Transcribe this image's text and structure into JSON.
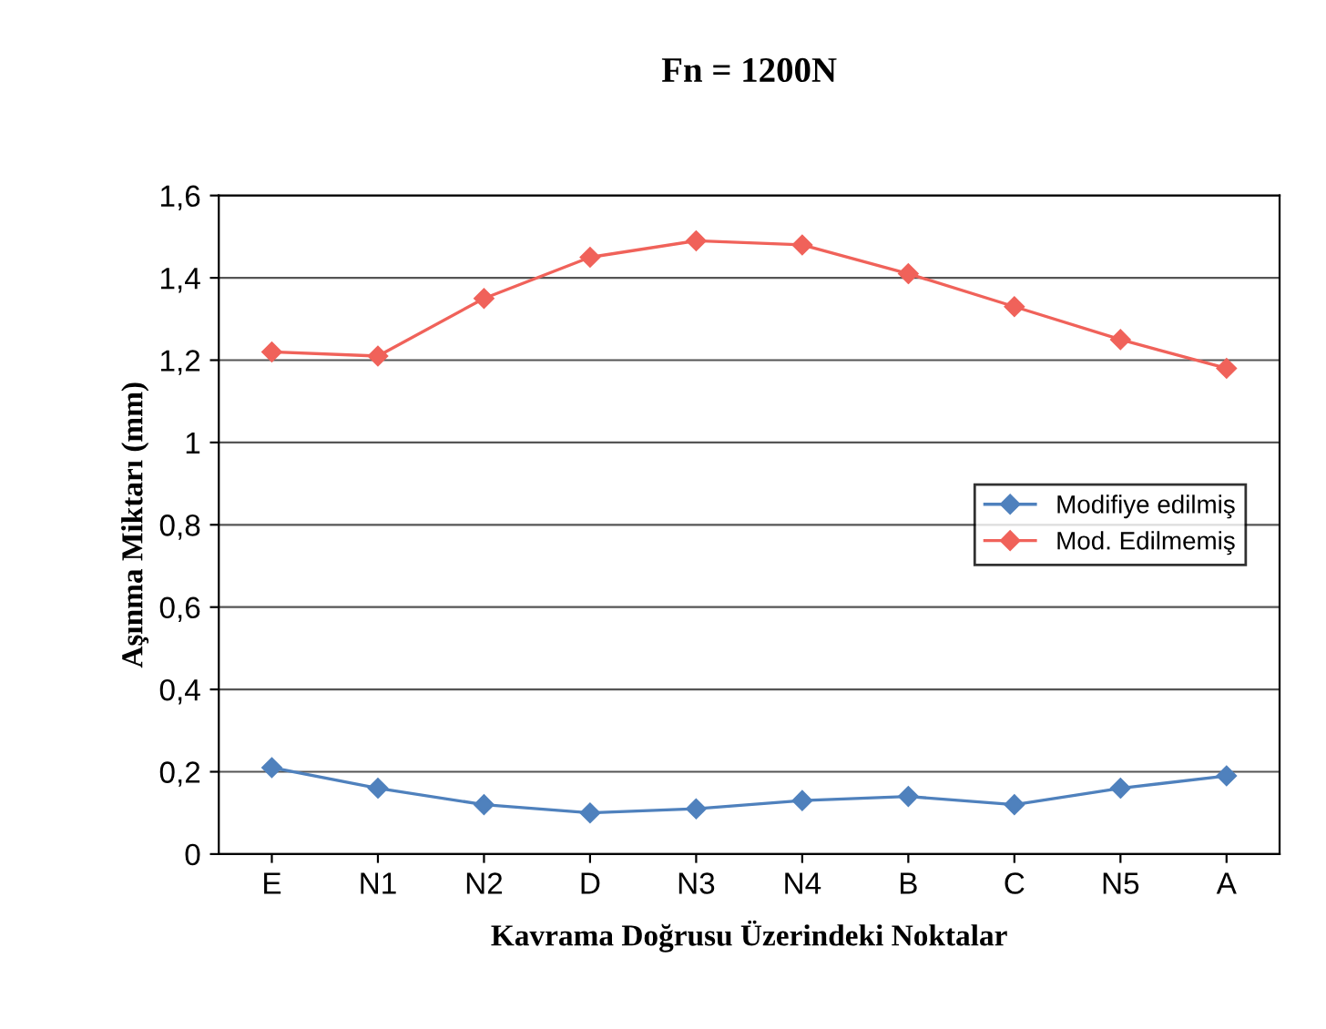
{
  "chart_data": {
    "type": "line",
    "title": "Fn = 1200N",
    "xlabel": "Kavrama Doğrusu Üzerindeki Noktalar",
    "ylabel": "Aşınma Miktarı (mm)",
    "categories": [
      "E",
      "N1",
      "N2",
      "D",
      "N3",
      "N4",
      "B",
      "C",
      "N5",
      "A"
    ],
    "series": [
      {
        "name": "Modifiye edilmiş",
        "color": "#4f81bd",
        "values": [
          0.21,
          0.16,
          0.12,
          0.1,
          0.11,
          0.13,
          0.14,
          0.12,
          0.16,
          0.19
        ]
      },
      {
        "name": "Mod. Edilmemiş",
        "color": "#f0625a",
        "values": [
          1.22,
          1.21,
          1.35,
          1.45,
          1.49,
          1.48,
          1.41,
          1.33,
          1.25,
          1.18
        ]
      }
    ],
    "ylim": [
      0,
      1.6
    ],
    "yticks": [
      0,
      {
        "value": 0.2,
        "label": "0,2"
      },
      {
        "value": 0.4,
        "label": "0,4"
      },
      {
        "value": 0.6,
        "label": "0,6"
      },
      {
        "value": 0.8,
        "label": "0,8"
      },
      1,
      {
        "value": 1.2,
        "label": "1,2"
      },
      {
        "value": 1.4,
        "label": "1,4"
      },
      {
        "value": 1.6,
        "label": "1,6"
      }
    ],
    "grid": "y",
    "legend": "right",
    "marker": "diamond",
    "line_style": "solid"
  }
}
